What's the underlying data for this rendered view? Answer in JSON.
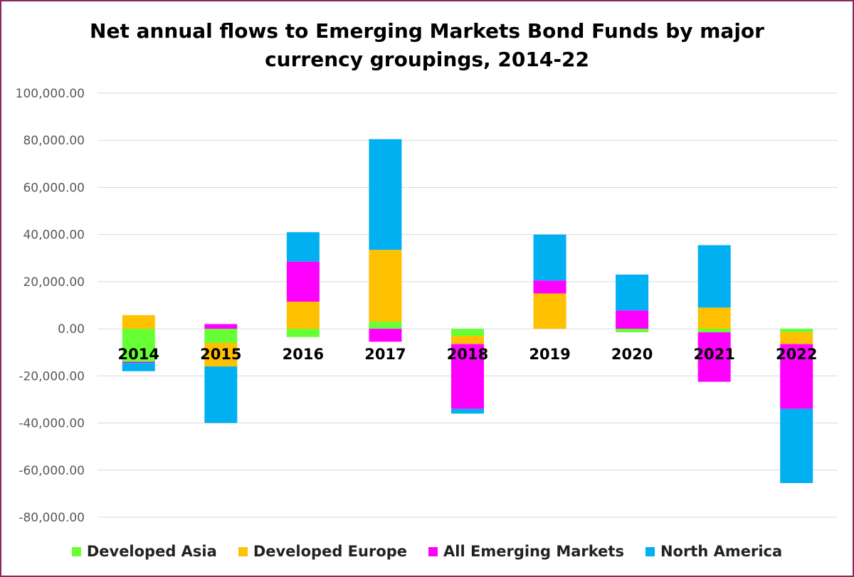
{
  "chart_data": {
    "type": "bar",
    "stacked": true,
    "title": "Net annual flows to Emerging Markets Bond Funds by major currency groupings, 2014-22",
    "title_lines": [
      "Net annual flows to Emerging Markets Bond Funds by major",
      "currency groupings, 2014-22"
    ],
    "categories": [
      "2014",
      "2015",
      "2016",
      "2017",
      "2018",
      "2019",
      "2020",
      "2021",
      "2022"
    ],
    "series": [
      {
        "name": "Developed Asia",
        "color": "#66ff33",
        "values": [
          -14000,
          -6000,
          -3500,
          3000,
          -3000,
          0,
          -1500,
          -1500,
          -1500
        ]
      },
      {
        "name": "Developed Europe",
        "color": "#ffc000",
        "values": [
          5800,
          -10000,
          11500,
          30500,
          -3500,
          15000,
          0,
          9000,
          -5000
        ]
      },
      {
        "name": "All Emerging Markets",
        "color": "#ff00ff",
        "values": [
          -500,
          2000,
          17000,
          -5500,
          -27500,
          5500,
          7800,
          -21000,
          -27500
        ]
      },
      {
        "name": "North America",
        "color": "#00b0f0",
        "values": [
          -3500,
          -24000,
          12500,
          47000,
          -2000,
          19500,
          15200,
          26500,
          -31500
        ]
      }
    ],
    "ylim": [
      -80000,
      100000
    ],
    "yticks": [
      100000,
      80000,
      60000,
      40000,
      20000,
      0,
      -20000,
      -40000,
      -60000,
      -80000
    ],
    "ytick_labels": [
      "100,000.00",
      "80,000.00",
      "60,000.00",
      "40,000.00",
      "20,000.00",
      "0.00",
      "-20,000.00",
      "-40,000.00",
      "-60,000.00",
      "-80,000.00"
    ],
    "xlabel": "",
    "ylabel": "",
    "grid": true,
    "legend_position": "bottom"
  }
}
